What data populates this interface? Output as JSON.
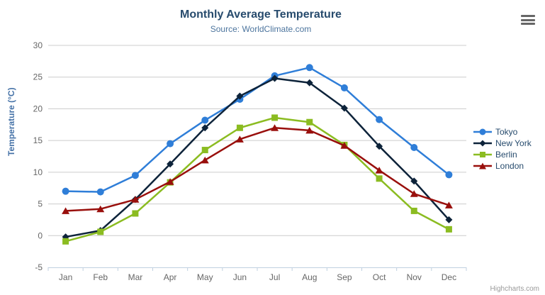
{
  "chart_data": {
    "type": "line",
    "title": "Monthly Average Temperature",
    "subtitle": "Source: WorldClimate.com",
    "categories": [
      "Jan",
      "Feb",
      "Mar",
      "Apr",
      "May",
      "Jun",
      "Jul",
      "Aug",
      "Sep",
      "Oct",
      "Nov",
      "Dec"
    ],
    "xlabel": "",
    "ylabel": "Temperature (°C)",
    "ylim": [
      -5,
      30
    ],
    "ytick_interval": 5,
    "grid": true,
    "legend_position": "right",
    "series": [
      {
        "name": "Tokyo",
        "color": "#2f7ed8",
        "marker": "circle",
        "values": [
          7.0,
          6.9,
          9.5,
          14.5,
          18.2,
          21.5,
          25.2,
          26.5,
          23.3,
          18.3,
          13.9,
          9.6
        ]
      },
      {
        "name": "New York",
        "color": "#0d233a",
        "marker": "diamond",
        "values": [
          -0.2,
          0.8,
          5.7,
          11.3,
          17.0,
          22.0,
          24.8,
          24.1,
          20.1,
          14.1,
          8.6,
          2.5
        ]
      },
      {
        "name": "Berlin",
        "color": "#8bbc21",
        "marker": "square",
        "values": [
          -0.9,
          0.6,
          3.5,
          8.4,
          13.5,
          17.0,
          18.6,
          17.9,
          14.3,
          9.0,
          3.9,
          1.0
        ]
      },
      {
        "name": "London",
        "color": "#990f0c",
        "marker": "triangle",
        "values": [
          3.9,
          4.2,
          5.7,
          8.5,
          11.9,
          15.2,
          17.0,
          16.6,
          14.2,
          10.3,
          6.6,
          4.8
        ]
      }
    ]
  },
  "credits": {
    "label": "Highcharts.com"
  },
  "icons": {
    "context_menu": "hamburger-icon"
  },
  "colors": {
    "title": "#274b6d",
    "subtitle": "#4d759e",
    "axis_title": "#4572a7",
    "axis_label": "#666666",
    "legend_text": "#274b6d",
    "gridline": "#cccccc",
    "axis_line": "#c0d0e0",
    "credits": "#999999"
  }
}
